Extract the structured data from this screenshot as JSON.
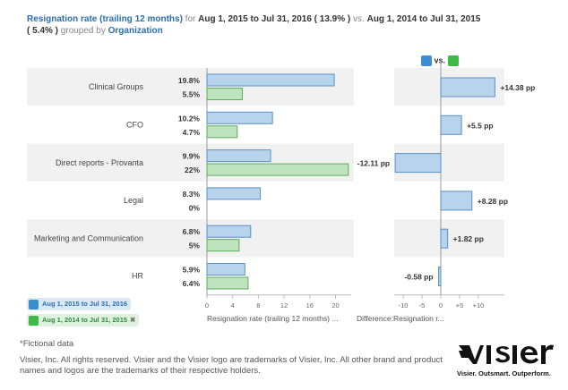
{
  "header": {
    "metric": "Resignation rate (trailing 12 months)",
    "for_word": "for",
    "period_current": "Aug 1, 2015 to Jul 31, 2016",
    "current_total": "( 13.9% )",
    "vs_word": "vs.",
    "period_prior": "Aug 1, 2014 to Jul 31, 2015",
    "prior_total": "( 5.4% )",
    "grouped_by": "grouped by",
    "group": "Organization"
  },
  "legend": {
    "vs": "vs.",
    "current_label": "Aug 1, 2015 to Jul 31, 2016",
    "prior_label": "Aug 1, 2014 to Jul 31, 2015",
    "remove": "✖"
  },
  "colors": {
    "current_fill": "#b8d3ec",
    "current_stroke": "#5b8fc7",
    "prior_fill": "#bfe3bf",
    "prior_stroke": "#5cae5c",
    "row_band": "#f1f1f1"
  },
  "chart_data": [
    {
      "type": "bar",
      "orientation": "horizontal",
      "categories": [
        "Clinical Groups",
        "CFO",
        "Direct reports - Provanta",
        "Legal",
        "Marketing and Communication",
        "HR"
      ],
      "series": [
        {
          "name": "Aug 1, 2015 to Jul 31, 2016",
          "values": [
            19.8,
            10.2,
            9.9,
            8.3,
            6.8,
            5.9
          ],
          "labels": [
            "19.8%",
            "10.2%",
            "9.9%",
            "8.3%",
            "6.8%",
            "5.9%"
          ]
        },
        {
          "name": "Aug 1, 2014 to Jul 31, 2015",
          "values": [
            5.5,
            4.7,
            22,
            0,
            5,
            6.4
          ],
          "labels": [
            "5.5%",
            "4.7%",
            "22%",
            "0%",
            "5%",
            "6.4%"
          ]
        }
      ],
      "xlim": [
        0,
        22
      ],
      "xticks": [
        0,
        4,
        8,
        12,
        16,
        20
      ],
      "xlabel": "Resignation rate (trailing 12 months) ..."
    },
    {
      "type": "bar",
      "orientation": "horizontal",
      "categories": [
        "Clinical Groups",
        "CFO",
        "Direct reports - Provanta",
        "Legal",
        "Marketing and Communication",
        "HR"
      ],
      "values": [
        14.38,
        5.5,
        -12.11,
        8.28,
        1.82,
        -0.58
      ],
      "labels": [
        "+14.38 pp",
        "+5.5 pp",
        "-12.11 pp",
        "+8.28 pp",
        "+1.82 pp",
        "-0.58 pp"
      ],
      "xlim": [
        -13,
        15
      ],
      "xticks": [
        -10,
        -5,
        0,
        5,
        10
      ],
      "xtick_labels": [
        "-10",
        "-5",
        "0",
        "+5",
        "+10"
      ],
      "xlabel": "Difference:Resignation r..."
    }
  ],
  "footer": {
    "note": "*Fictional data",
    "copyright": "Visier, Inc. All rights reserved. Visier and the Visier logo are trademarks of Visier, Inc. All other brand and product names and logos are the trademarks of their respective holders."
  },
  "logo": {
    "tagline": "Visier. Outsmart. Outperform."
  }
}
